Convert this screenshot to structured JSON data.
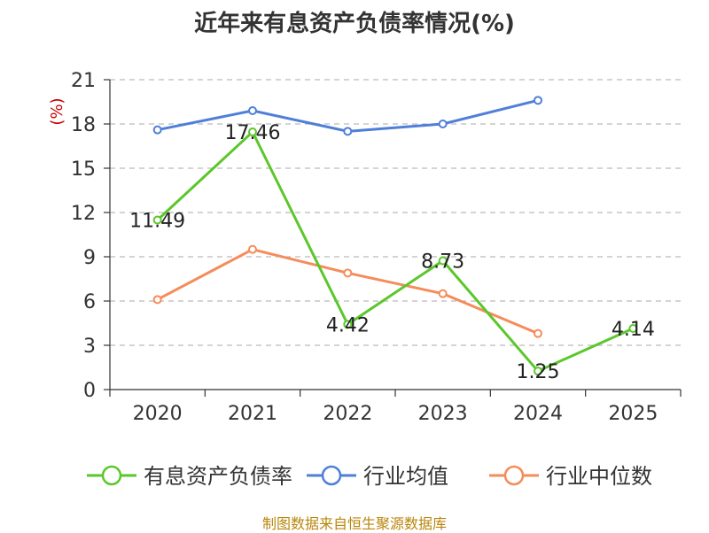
{
  "chart_data": {
    "type": "line",
    "title": "近年来有息资产负债率情况(%)",
    "ylabel": "(%)",
    "xlabel": "",
    "categories": [
      "2020",
      "2021",
      "2022",
      "2023",
      "2024",
      "2025"
    ],
    "yticks": [
      "0",
      "3",
      "6",
      "9",
      "12",
      "15",
      "18",
      "21"
    ],
    "ylim": [
      0,
      21
    ],
    "grid": true,
    "legend_position": "bottom",
    "series": [
      {
        "name": "有息资产负债率",
        "color": "#5bc72b",
        "values": [
          11.49,
          17.46,
          4.42,
          8.73,
          1.25,
          4.14
        ],
        "labels": [
          "11.49",
          "17.46",
          "4.42",
          "8.73",
          "1.25",
          "4.14"
        ]
      },
      {
        "name": "行业均值",
        "color": "#4f7fd8",
        "values": [
          17.6,
          18.9,
          17.5,
          18.0,
          19.6,
          null
        ]
      },
      {
        "name": "行业中位数",
        "color": "#f58c5a",
        "values": [
          6.1,
          9.5,
          7.9,
          6.5,
          3.8,
          null
        ]
      }
    ]
  },
  "colors": {
    "axis": "#333333",
    "grid": "#bbbbbb",
    "unit": "#cc0000",
    "source": "#b8860b"
  },
  "source": "制图数据来自恒生聚源数据库"
}
